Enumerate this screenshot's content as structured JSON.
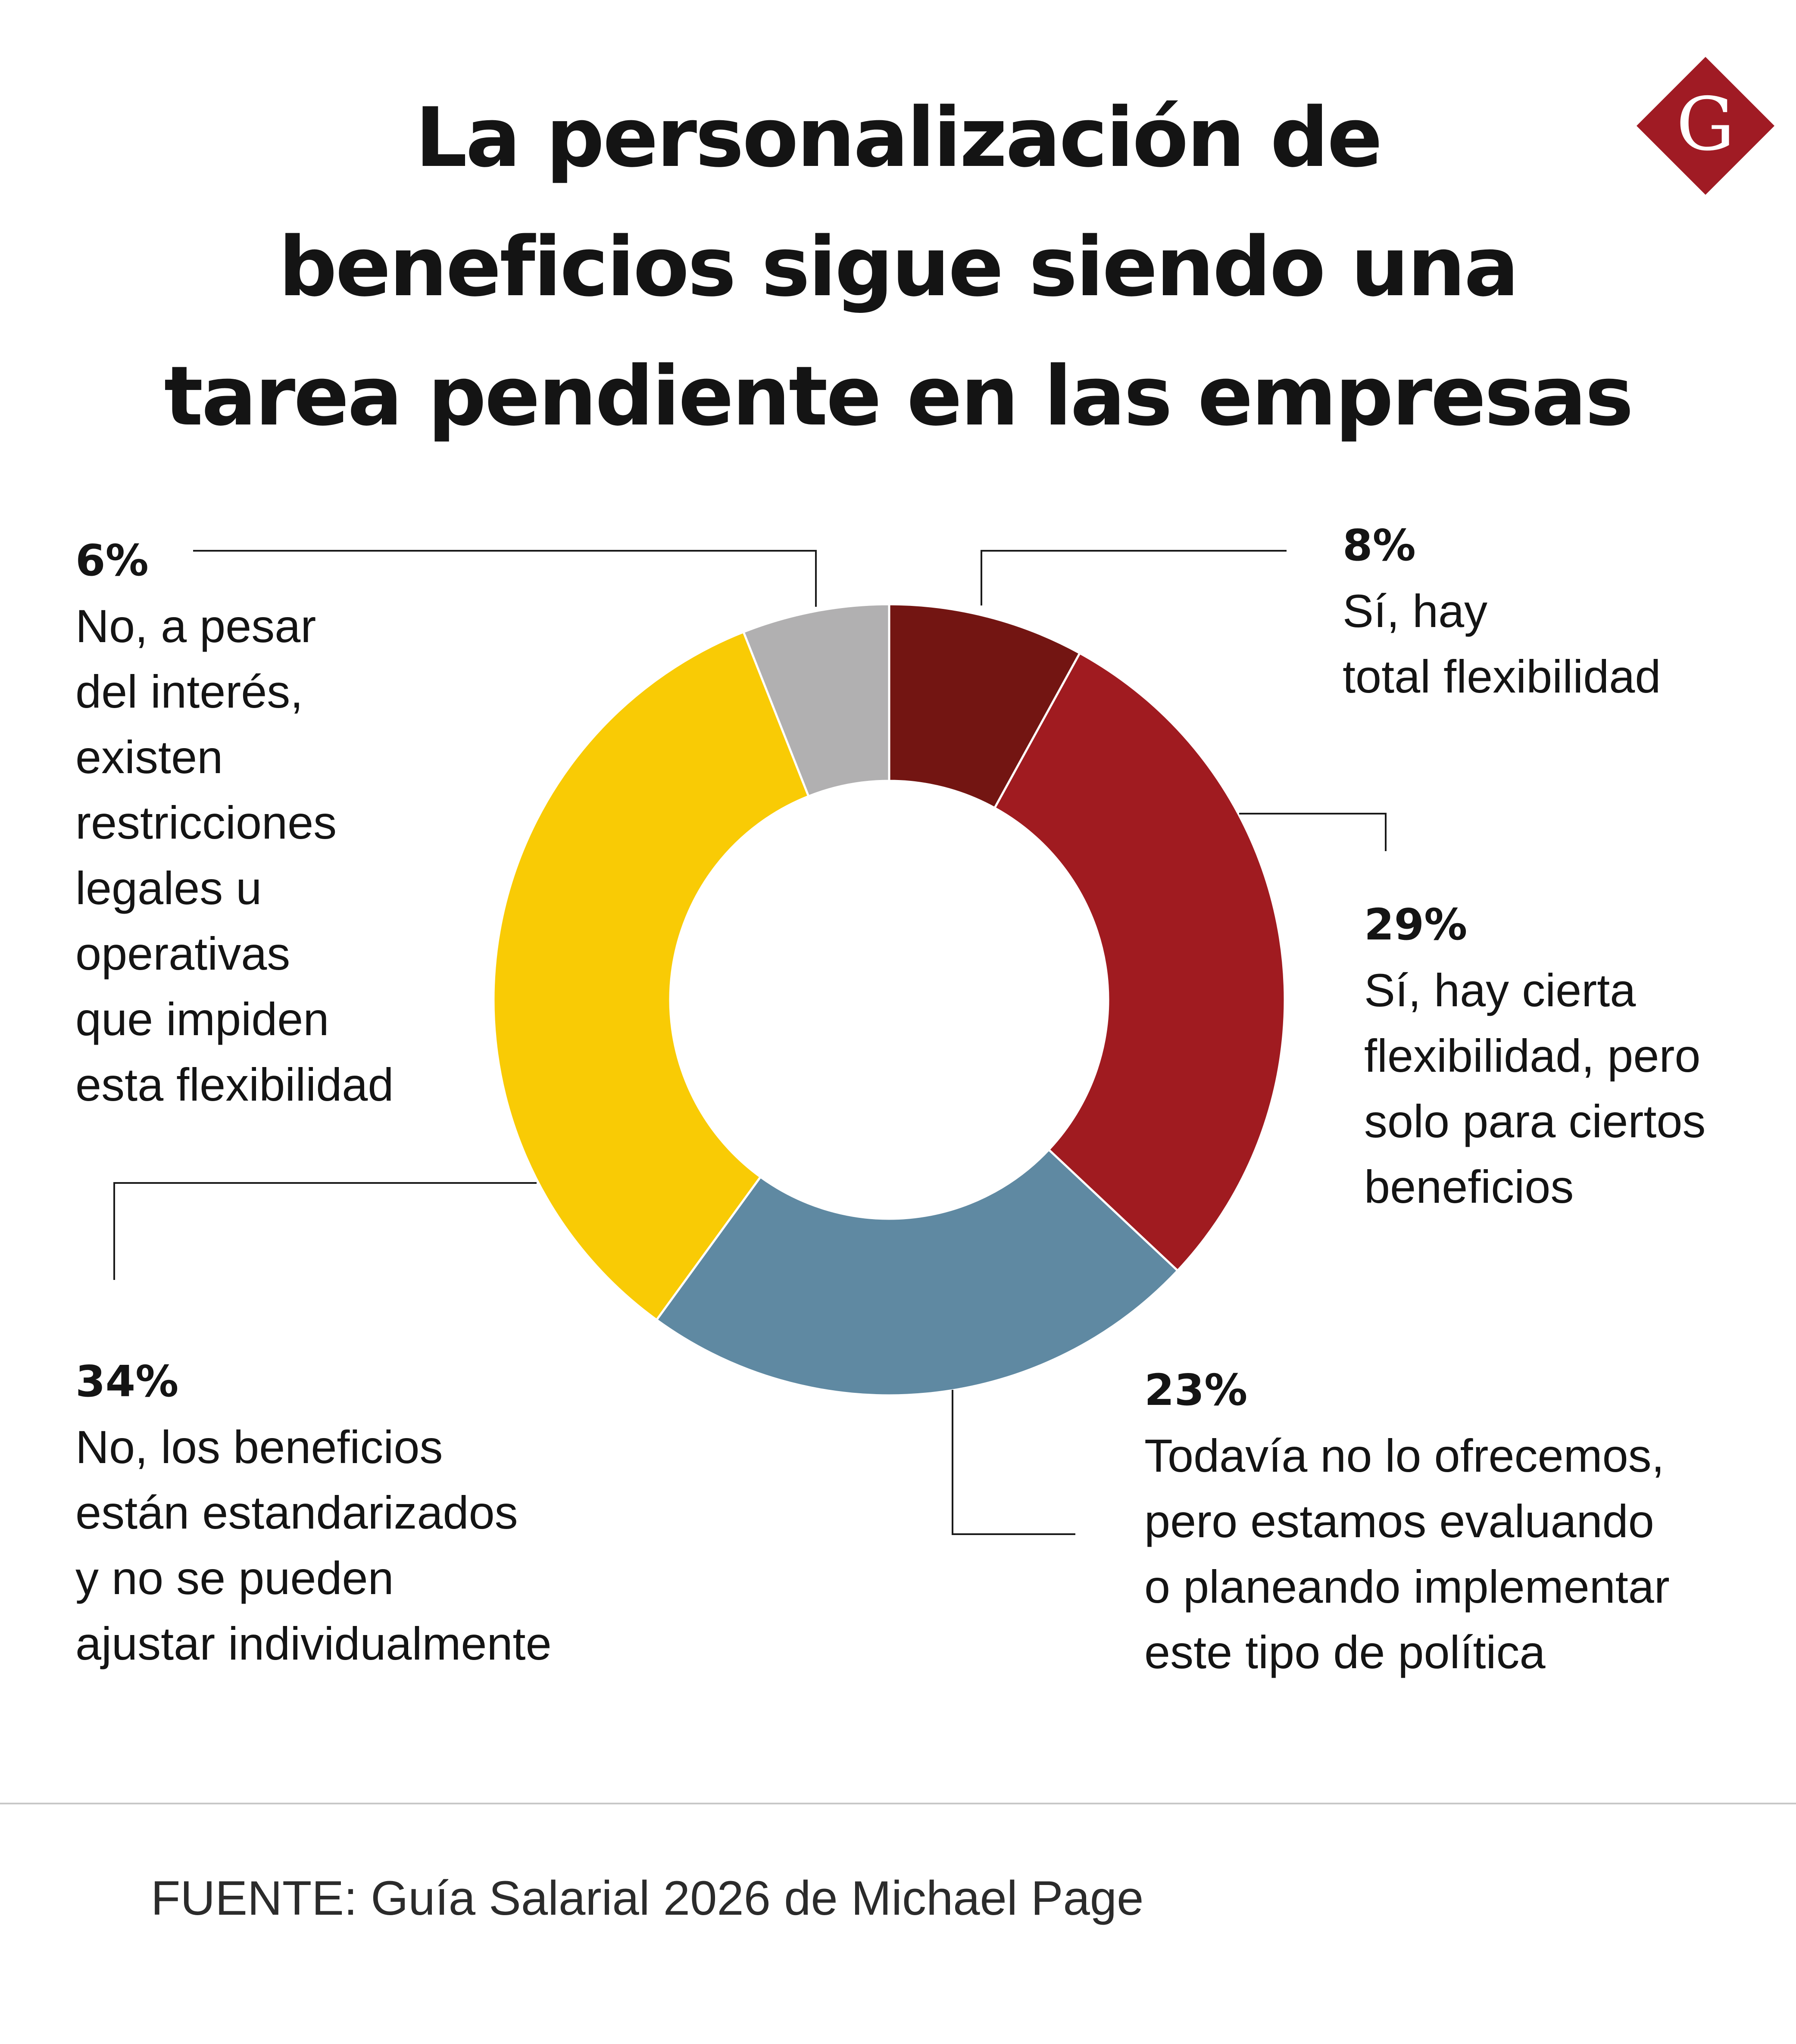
{
  "title_lines": [
    "La personalización de",
    "beneficios sigue siendo una",
    "tarea pendiente en las empresas"
  ],
  "logo": {
    "letter": "G",
    "color": "#a01b24"
  },
  "chart_data": {
    "type": "pie",
    "variant": "donut",
    "title": "La personalización de beneficios sigue siendo una tarea pendiente en las empresas",
    "unit": "%",
    "slices": [
      {
        "value": 8,
        "label": "8%",
        "color": "#731512",
        "lines": [
          "Sí, hay",
          "total flexibilidad"
        ]
      },
      {
        "value": 29,
        "label": "29%",
        "color": "#a01b20",
        "lines": [
          "Sí, hay cierta",
          "flexibilidad, pero",
          "solo para ciertos",
          "beneficios"
        ]
      },
      {
        "value": 23,
        "label": "23%",
        "color": "#5f89a2",
        "lines": [
          "Todavía no lo ofrecemos,",
          "pero estamos evaluando",
          "o planeando implementar",
          "este tipo de política"
        ]
      },
      {
        "value": 34,
        "label": "34%",
        "color": "#f9cb05",
        "lines": [
          "No, los beneficios",
          "están estandarizados",
          "y no se pueden",
          "ajustar individualmente"
        ]
      },
      {
        "value": 6,
        "label": "6%",
        "color": "#b1b0b1",
        "lines": [
          "No, a pesar",
          "del interés,",
          "existen",
          "restricciones",
          "legales u",
          "operativas",
          "que impiden",
          "esta flexibilidad"
        ]
      }
    ]
  },
  "source": "FUENTE: Guía Salarial 2026 de Michael Page"
}
